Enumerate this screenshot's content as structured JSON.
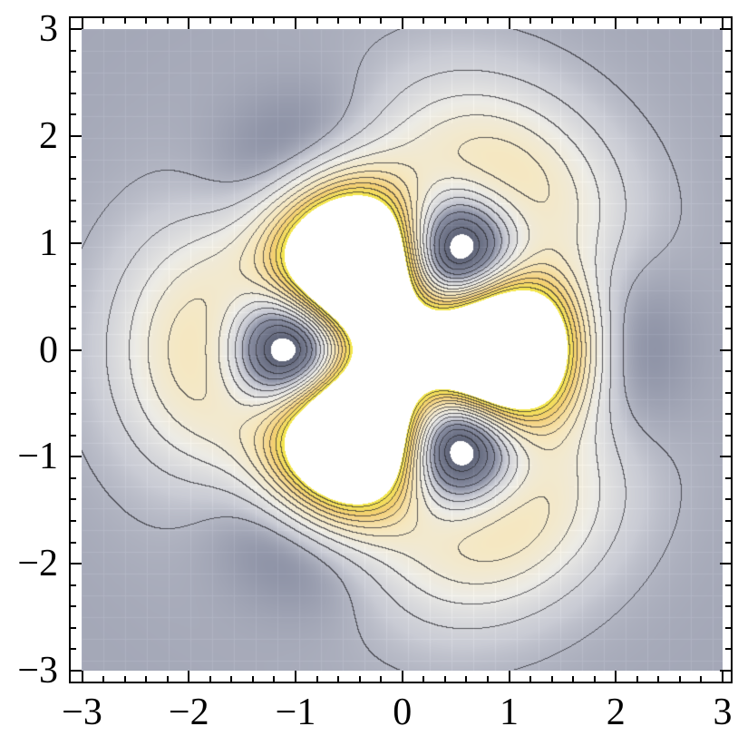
{
  "chart_data": {
    "type": "heatmap",
    "subtype": "contour",
    "title": "",
    "xlabel": "",
    "ylabel": "",
    "xlim": [
      -3,
      3
    ],
    "ylim": [
      -3,
      3
    ],
    "x_ticks": [
      -3,
      -2,
      -1,
      0,
      1,
      2,
      3
    ],
    "y_ticks": [
      -3,
      -2,
      -1,
      0,
      1,
      2,
      3
    ],
    "x_tick_labels": [
      "−3",
      "−2",
      "−1",
      "0",
      "1",
      "2",
      "3"
    ],
    "y_tick_labels": [
      "−3",
      "−2",
      "−1",
      "0",
      "1",
      "2",
      "3"
    ],
    "minor_tick_step": 0.2,
    "grid": false,
    "symmetry": "three-fold",
    "features": {
      "central_high_region": "white triangle, vertex pointing +x",
      "low_holes": [
        [
          -1.1,
          0
        ],
        [
          0.5,
          0.95
        ],
        [
          0.5,
          -0.95
        ]
      ],
      "clipped_color": "#ffffff"
    },
    "colormap": [
      "#5f6478",
      "#8a8fa3",
      "#c9cbd4",
      "#ecebe6",
      "#f6e7be",
      "#f3cf74",
      "#f4e94a"
    ],
    "contour_color": "#2a2a30"
  }
}
